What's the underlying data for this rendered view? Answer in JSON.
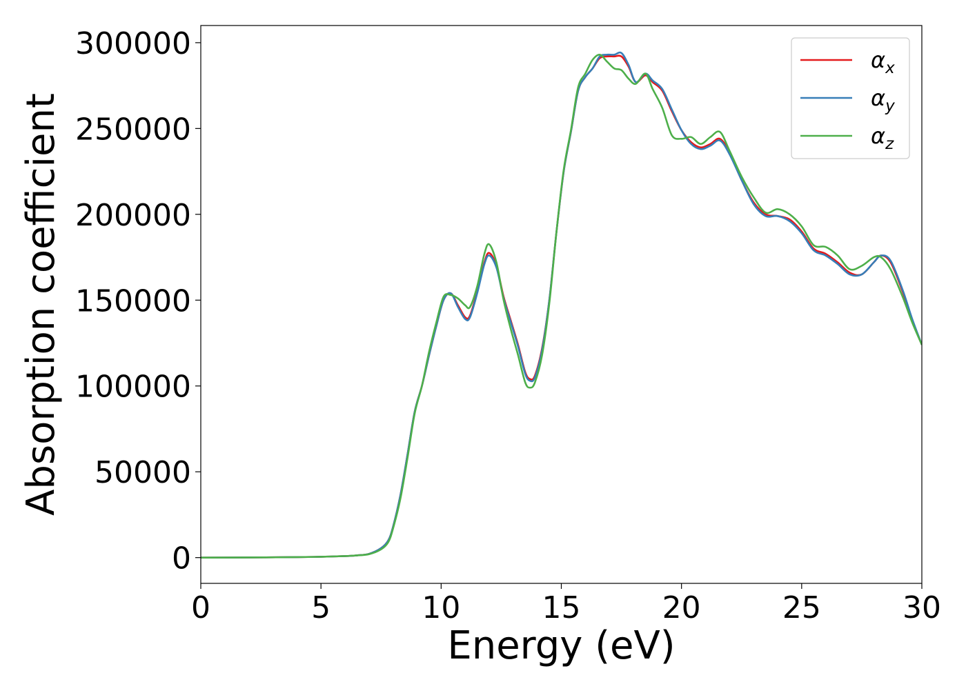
{
  "chart_data": {
    "type": "line",
    "title": "",
    "xlabel": "Energy (eV)",
    "ylabel": "Absorption coefficient",
    "xlim": [
      0,
      30
    ],
    "ylim": [
      -15000,
      310000
    ],
    "xticks": [
      0,
      5,
      10,
      15,
      20,
      25,
      30
    ],
    "yticks": [
      0,
      50000,
      100000,
      150000,
      200000,
      250000,
      300000
    ],
    "grid": false,
    "legend_position": "top-right",
    "series": [
      {
        "name": "α_x",
        "label_base": "α",
        "label_sub": "x",
        "color": "#e41a1c",
        "x": [
          0,
          2,
          4,
          5,
          6,
          6.5,
          7,
          7.5,
          7.8,
          8,
          8.3,
          8.6,
          8.9,
          9.2,
          9.5,
          9.8,
          10.1,
          10.4,
          10.7,
          11,
          11.2,
          11.5,
          11.8,
          12,
          12.3,
          12.6,
          12.9,
          13.2,
          13.5,
          13.7,
          13.9,
          14.2,
          14.5,
          14.8,
          15.1,
          15.4,
          15.7,
          16,
          16.3,
          16.6,
          16.9,
          17.2,
          17.5,
          17.8,
          18.1,
          18.5,
          18.8,
          19.2,
          19.6,
          20,
          20.4,
          20.8,
          21.2,
          21.6,
          22,
          22.5,
          23,
          23.5,
          24,
          24.5,
          25,
          25.5,
          26,
          26.5,
          27,
          27.5,
          28,
          28.3,
          28.7,
          29.2,
          29.6,
          30
        ],
        "values": [
          0,
          100,
          300,
          500,
          900,
          1300,
          2200,
          5500,
          10000,
          18000,
          36000,
          60000,
          85000,
          100000,
          118000,
          135000,
          150000,
          154000,
          147000,
          140000,
          141000,
          155000,
          172000,
          177500,
          170000,
          152000,
          138000,
          124000,
          108000,
          104000,
          106000,
          122000,
          150000,
          190000,
          225000,
          248000,
          272000,
          280000,
          285000,
          291000,
          292000,
          292000,
          292000,
          286000,
          277000,
          281000,
          277000,
          272000,
          260000,
          249000,
          242000,
          239000,
          241000,
          244000,
          236000,
          220000,
          207000,
          200000,
          199000,
          197000,
          190000,
          180000,
          177000,
          172000,
          166000,
          165000,
          172000,
          176000,
          172000,
          155000,
          138000,
          124000
        ]
      },
      {
        "name": "α_y",
        "label_base": "α",
        "label_sub": "y",
        "color": "#377eb8",
        "x": [
          0,
          2,
          4,
          5,
          6,
          6.5,
          7,
          7.5,
          7.8,
          8,
          8.3,
          8.6,
          8.9,
          9.2,
          9.5,
          9.8,
          10.1,
          10.4,
          10.7,
          11,
          11.2,
          11.5,
          11.8,
          12,
          12.3,
          12.6,
          12.9,
          13.2,
          13.5,
          13.7,
          13.9,
          14.2,
          14.5,
          14.8,
          15.1,
          15.4,
          15.7,
          16,
          16.3,
          16.6,
          16.9,
          17.2,
          17.5,
          17.8,
          18.1,
          18.5,
          18.8,
          19.2,
          19.6,
          20,
          20.4,
          20.8,
          21.2,
          21.6,
          22,
          22.5,
          23,
          23.5,
          24,
          24.5,
          25,
          25.5,
          26,
          26.5,
          27,
          27.5,
          28,
          28.3,
          28.7,
          29.2,
          29.6,
          30
        ],
        "values": [
          0,
          100,
          300,
          500,
          900,
          1300,
          2200,
          5500,
          10000,
          18000,
          36000,
          60000,
          85000,
          100000,
          118000,
          135000,
          150000,
          154000,
          146000,
          139000,
          140000,
          154000,
          171000,
          176000,
          169000,
          151000,
          137000,
          123000,
          107000,
          103000,
          105000,
          121000,
          150000,
          190000,
          225000,
          248000,
          272000,
          280000,
          285000,
          292000,
          293000,
          293000,
          294000,
          287000,
          277000,
          282000,
          278000,
          273000,
          261000,
          249000,
          241000,
          238000,
          240000,
          243000,
          235000,
          220000,
          206000,
          199000,
          199000,
          196000,
          189000,
          179000,
          176000,
          171000,
          165000,
          165000,
          172000,
          176000,
          173000,
          156000,
          139000,
          124000
        ]
      },
      {
        "name": "α_z",
        "label_base": "α",
        "label_sub": "z",
        "color": "#4daf4a",
        "x": [
          0,
          2,
          4,
          5,
          6,
          6.5,
          7,
          7.5,
          7.8,
          8,
          8.3,
          8.6,
          8.9,
          9.2,
          9.5,
          9.8,
          10.1,
          10.4,
          10.7,
          11,
          11.2,
          11.5,
          11.8,
          12,
          12.3,
          12.6,
          12.9,
          13.2,
          13.5,
          13.7,
          13.9,
          14.2,
          14.5,
          14.8,
          15.1,
          15.4,
          15.7,
          16,
          16.3,
          16.6,
          16.9,
          17.2,
          17.5,
          17.8,
          18.1,
          18.5,
          18.8,
          19.2,
          19.6,
          20,
          20.4,
          20.8,
          21.2,
          21.6,
          22,
          22.5,
          23,
          23.5,
          24,
          24.5,
          25,
          25.5,
          26,
          26.5,
          27,
          27.5,
          28,
          28.3,
          28.7,
          29.2,
          29.6,
          30
        ],
        "values": [
          0,
          100,
          300,
          500,
          900,
          1300,
          2000,
          4800,
          9000,
          17000,
          34000,
          58000,
          84000,
          100000,
          120000,
          137000,
          152000,
          153000,
          151000,
          147000,
          146000,
          158000,
          177000,
          182500,
          172000,
          150000,
          133000,
          118000,
          102000,
          99000,
          102000,
          118000,
          148000,
          190000,
          226000,
          249000,
          274000,
          282000,
          290000,
          293000,
          289000,
          285000,
          284000,
          279000,
          276000,
          282000,
          273000,
          262000,
          246000,
          244000,
          245000,
          241000,
          245000,
          248000,
          237000,
          222000,
          210000,
          201000,
          203000,
          200000,
          193000,
          182000,
          181000,
          176000,
          168000,
          170000,
          175000,
          175000,
          168000,
          152000,
          137000,
          124000
        ]
      }
    ]
  }
}
